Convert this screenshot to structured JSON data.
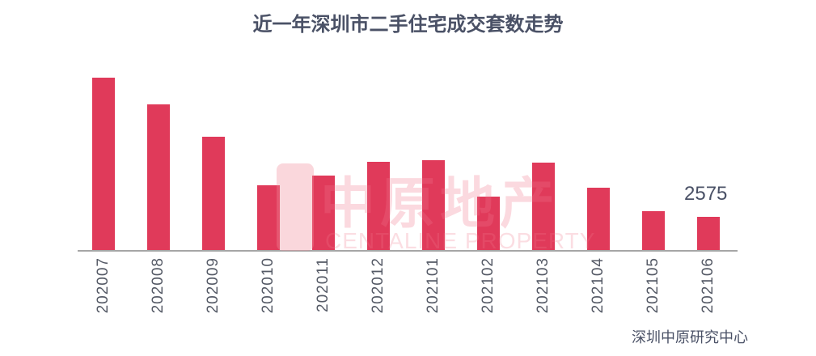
{
  "chart_data": {
    "type": "bar",
    "title": "近一年深圳市二手住宅成交套数走势",
    "xlabel": "",
    "ylabel": "",
    "categories": [
      "202007",
      "202008",
      "202009",
      "202010",
      "202011",
      "202012",
      "202101",
      "202102",
      "202103",
      "202104",
      "202105",
      "202106"
    ],
    "values": [
      13100,
      11100,
      8650,
      4970,
      5700,
      6740,
      6870,
      4110,
      6680,
      4780,
      3000,
      2575
    ],
    "data_labels": [
      {
        "category": "202106",
        "text": "2575"
      }
    ],
    "ylim": [
      0,
      13500
    ],
    "grid": false,
    "legend": null,
    "bar_color": "#e03a5a",
    "source": "深圳中原研究中心",
    "watermark": {
      "cn": "中原地产",
      "en": "CENTALINE PROPERTY"
    }
  }
}
